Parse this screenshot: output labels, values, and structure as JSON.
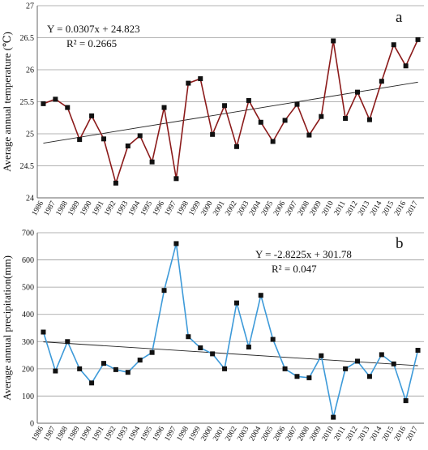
{
  "chart_data": [
    {
      "type": "line",
      "panel_label": "a",
      "title": "",
      "xlabel": "",
      "ylabel": "Average annual temperature (℃)",
      "ylim": [
        24,
        27
      ],
      "yticks": [
        "24",
        "24.5",
        "25",
        "25.5",
        "26",
        "26.5",
        "27"
      ],
      "grid": true,
      "line_color": "#8b1a1a",
      "marker_color": "#111111",
      "trend": {
        "equation": "Y = 0.0307x + 24.823",
        "r2": "R² = 0.2665",
        "slope": 0.0307,
        "intercept": 24.823
      },
      "x": [
        "1986",
        "1987",
        "1988",
        "1989",
        "1990",
        "1991",
        "1992",
        "1993",
        "1994",
        "1995",
        "1996",
        "1997",
        "1998",
        "1999",
        "2000",
        "2001",
        "2002",
        "2003",
        "2004",
        "2005",
        "2006",
        "2007",
        "2008",
        "2009",
        "2010",
        "2011",
        "2012",
        "2013",
        "2014",
        "2015",
        "2016",
        "2017"
      ],
      "values": [
        25.47,
        25.54,
        25.41,
        24.91,
        25.28,
        24.92,
        24.23,
        24.81,
        24.97,
        24.56,
        25.41,
        24.3,
        25.79,
        25.86,
        24.99,
        25.44,
        24.8,
        25.52,
        25.18,
        24.88,
        25.21,
        25.46,
        24.98,
        25.27,
        26.45,
        25.24,
        25.65,
        25.22,
        25.82,
        26.39,
        26.06,
        26.47
      ]
    },
    {
      "type": "line",
      "panel_label": "b",
      "title": "",
      "xlabel": "",
      "ylabel": "Average annual precipitation(mm)",
      "ylim": [
        0,
        700
      ],
      "yticks": [
        "0",
        "100",
        "200",
        "300",
        "400",
        "500",
        "600",
        "700"
      ],
      "grid": true,
      "line_color": "#3d9ad9",
      "marker_color": "#111111",
      "trend": {
        "equation": "Y = -2.8225x + 301.78",
        "r2": "R² = 0.047",
        "slope": -2.8225,
        "intercept": 301.78
      },
      "x": [
        "1986",
        "1987",
        "1988",
        "1989",
        "1990",
        "1991",
        "1992",
        "1993",
        "1994",
        "1995",
        "1996",
        "1997",
        "1998",
        "1999",
        "2000",
        "2001",
        "2002",
        "2003",
        "2004",
        "2005",
        "2006",
        "2007",
        "2008",
        "2009",
        "2010",
        "2011",
        "2012",
        "2013",
        "2014",
        "2015",
        "2016",
        "2017"
      ],
      "values": [
        335,
        192,
        300,
        200,
        148,
        220,
        197,
        187,
        232,
        260,
        488,
        660,
        318,
        277,
        255,
        200,
        442,
        280,
        470,
        308,
        200,
        172,
        167,
        248,
        22,
        200,
        228,
        172,
        252,
        218,
        83,
        268
      ]
    }
  ]
}
